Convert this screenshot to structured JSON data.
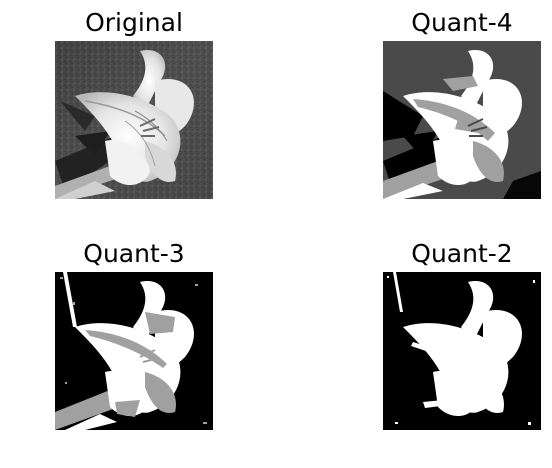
{
  "panels": [
    {
      "id": "original",
      "title": "Original",
      "levels": 256
    },
    {
      "id": "quant4",
      "title": "Quant-4",
      "levels": 4
    },
    {
      "id": "quant3",
      "title": "Quant-3",
      "levels": 3
    },
    {
      "id": "quant2",
      "title": "Quant-2",
      "levels": 2
    }
  ],
  "colors": {
    "background": "#ffffff",
    "text": "#000000",
    "quant_black": "#000000",
    "quant_dark_gray": "#4a4a4a",
    "quant_gray": "#a0a0a0",
    "quant_white": "#ffffff"
  },
  "subject": "lily-flower"
}
